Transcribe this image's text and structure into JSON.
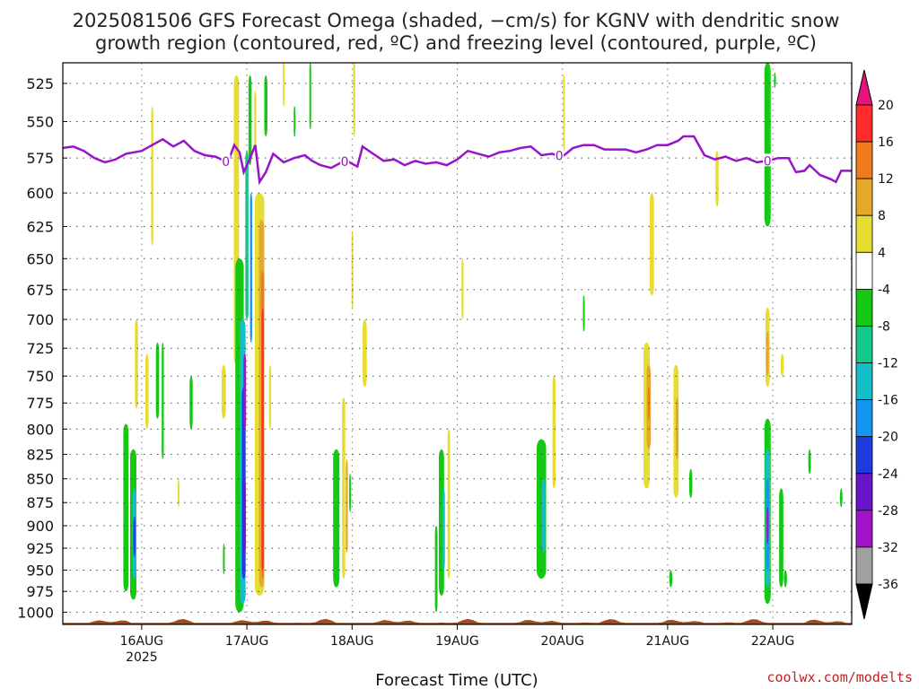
{
  "title": {
    "line1": "2025081506 GFS Forecast Omega (shaded, −cm/s) for KGNV with dendritic snow",
    "line2": "growth region (contoured, red, ºC) and freezing level (contoured, purple, ºC)"
  },
  "credit": "coolwx.com/modelts",
  "chart_data": {
    "type": "heatmap",
    "xlabel": "Forecast Time (UTC)",
    "ylabel": "",
    "x_tick_labels": [
      "16AUG",
      "17AUG",
      "18AUG",
      "19AUG",
      "20AUG",
      "21AUG",
      "22AUG"
    ],
    "x_tick_sublabel": "2025",
    "x_range_days": [
      15.25,
      22.75
    ],
    "y_range_hPa": [
      1015,
      512
    ],
    "y_ticks": [
      525,
      550,
      575,
      600,
      625,
      650,
      675,
      700,
      725,
      750,
      775,
      800,
      825,
      850,
      875,
      900,
      925,
      950,
      975,
      1000
    ],
    "grid": true,
    "colorbar": {
      "unit": "-cm/s",
      "labels": [
        "20",
        "16",
        "12",
        "8",
        "4",
        "-4",
        "-8",
        "-12",
        "-16",
        "-20",
        "-24",
        "-28",
        "-32",
        "-36"
      ],
      "bins": [
        {
          "lo": 16,
          "hi": 20,
          "color": "#ff2a2a"
        },
        {
          "lo": 12,
          "hi": 16,
          "color": "#f07a1e"
        },
        {
          "lo": 8,
          "hi": 12,
          "color": "#e6a82a"
        },
        {
          "lo": 4,
          "hi": 8,
          "color": "#e6dc32"
        },
        {
          "lo": -4,
          "hi": 4,
          "color": "#ffffff"
        },
        {
          "lo": -8,
          "hi": -4,
          "color": "#14c814"
        },
        {
          "lo": -12,
          "hi": -8,
          "color": "#14c88c"
        },
        {
          "lo": -16,
          "hi": -12,
          "color": "#14bec8"
        },
        {
          "lo": -20,
          "hi": -16,
          "color": "#1496f0"
        },
        {
          "lo": -24,
          "hi": -20,
          "color": "#1e3cdc"
        },
        {
          "lo": -28,
          "hi": -24,
          "color": "#6a14c8"
        },
        {
          "lo": -32,
          "hi": -28,
          "color": "#a014c8"
        },
        {
          "lo": -36,
          "hi": -32,
          "color": "#a0a0a0"
        }
      ],
      "top_arrow_color": "#e6147a",
      "bottom_arrow_color": "#000000"
    },
    "freezing_level": {
      "color": "#9914c8",
      "label": "0",
      "label_days": [
        16.8,
        17.93,
        19.97,
        21.95
      ],
      "points": [
        [
          15.25,
          568
        ],
        [
          15.35,
          567
        ],
        [
          15.45,
          570
        ],
        [
          15.55,
          575
        ],
        [
          15.65,
          578
        ],
        [
          15.75,
          576
        ],
        [
          15.85,
          572
        ],
        [
          16.0,
          570
        ],
        [
          16.1,
          566
        ],
        [
          16.2,
          562
        ],
        [
          16.3,
          567
        ],
        [
          16.4,
          563
        ],
        [
          16.5,
          570
        ],
        [
          16.6,
          573
        ],
        [
          16.7,
          574
        ],
        [
          16.82,
          578
        ],
        [
          16.88,
          566
        ],
        [
          16.93,
          571
        ],
        [
          16.97,
          585
        ],
        [
          17.02,
          577
        ],
        [
          17.08,
          566
        ],
        [
          17.12,
          592
        ],
        [
          17.18,
          585
        ],
        [
          17.25,
          572
        ],
        [
          17.35,
          578
        ],
        [
          17.45,
          575
        ],
        [
          17.55,
          573
        ],
        [
          17.62,
          577
        ],
        [
          17.7,
          580
        ],
        [
          17.8,
          582
        ],
        [
          17.9,
          578
        ],
        [
          17.95,
          577
        ],
        [
          18.05,
          581
        ],
        [
          18.1,
          567
        ],
        [
          18.2,
          572
        ],
        [
          18.3,
          577
        ],
        [
          18.4,
          576
        ],
        [
          18.5,
          580
        ],
        [
          18.6,
          577
        ],
        [
          18.7,
          579
        ],
        [
          18.8,
          578
        ],
        [
          18.9,
          580
        ],
        [
          19.0,
          576
        ],
        [
          19.1,
          570
        ],
        [
          19.2,
          572
        ],
        [
          19.3,
          574
        ],
        [
          19.4,
          571
        ],
        [
          19.5,
          570
        ],
        [
          19.6,
          568
        ],
        [
          19.7,
          567
        ],
        [
          19.8,
          573
        ],
        [
          19.9,
          572
        ],
        [
          20.0,
          574
        ],
        [
          20.1,
          568
        ],
        [
          20.2,
          566
        ],
        [
          20.3,
          566
        ],
        [
          20.4,
          569
        ],
        [
          20.5,
          569
        ],
        [
          20.6,
          569
        ],
        [
          20.7,
          571
        ],
        [
          20.8,
          569
        ],
        [
          20.9,
          566
        ],
        [
          21.0,
          566
        ],
        [
          21.1,
          563
        ],
        [
          21.15,
          560
        ],
        [
          21.25,
          560
        ],
        [
          21.35,
          573
        ],
        [
          21.45,
          576
        ],
        [
          21.55,
          574
        ],
        [
          21.65,
          577
        ],
        [
          21.75,
          575
        ],
        [
          21.85,
          578
        ],
        [
          21.95,
          577
        ],
        [
          22.05,
          575
        ],
        [
          22.15,
          575
        ],
        [
          22.22,
          585
        ],
        [
          22.3,
          584
        ],
        [
          22.35,
          580
        ],
        [
          22.45,
          587
        ],
        [
          22.55,
          590
        ],
        [
          22.6,
          592
        ],
        [
          22.65,
          584
        ],
        [
          22.75,
          584
        ]
      ]
    },
    "terrain": {
      "color": "#9b4e1e",
      "surface_hPa": 1013
    },
    "shaded_regions": [
      {
        "day": 15.85,
        "p_top": 795,
        "p_bot": 975,
        "w": 0.05,
        "v": -6
      },
      {
        "day": 15.92,
        "p_top": 820,
        "p_bot": 985,
        "w": 0.06,
        "v": -8
      },
      {
        "day": 15.93,
        "p_top": 860,
        "p_bot": 960,
        "w": 0.035,
        "v": -16
      },
      {
        "day": 15.93,
        "p_top": 890,
        "p_bot": 935,
        "w": 0.02,
        "v": -22
      },
      {
        "day": 15.95,
        "p_top": 700,
        "p_bot": 780,
        "w": 0.03,
        "v": 5
      },
      {
        "day": 16.05,
        "p_top": 730,
        "p_bot": 800,
        "w": 0.03,
        "v": 5
      },
      {
        "day": 16.1,
        "p_top": 540,
        "p_bot": 640,
        "w": 0.02,
        "v": 5
      },
      {
        "day": 16.15,
        "p_top": 720,
        "p_bot": 790,
        "w": 0.03,
        "v": -6
      },
      {
        "day": 16.2,
        "p_top": 720,
        "p_bot": 830,
        "w": 0.02,
        "v": -6
      },
      {
        "day": 16.35,
        "p_top": 850,
        "p_bot": 880,
        "w": 0.015,
        "v": 5
      },
      {
        "day": 16.47,
        "p_top": 750,
        "p_bot": 800,
        "w": 0.03,
        "v": -6
      },
      {
        "day": 16.78,
        "p_top": 740,
        "p_bot": 790,
        "w": 0.04,
        "v": 5
      },
      {
        "day": 16.78,
        "p_top": 920,
        "p_bot": 955,
        "w": 0.015,
        "v": -6
      },
      {
        "day": 16.9,
        "p_top": 520,
        "p_bot": 740,
        "w": 0.05,
        "v": 5
      },
      {
        "day": 16.93,
        "p_top": 650,
        "p_bot": 1000,
        "w": 0.08,
        "v": -8
      },
      {
        "day": 16.96,
        "p_top": 700,
        "p_bot": 990,
        "w": 0.055,
        "v": -14
      },
      {
        "day": 16.97,
        "p_top": 760,
        "p_bot": 960,
        "w": 0.035,
        "v": -22
      },
      {
        "day": 16.98,
        "p_top": 730,
        "p_bot": 800,
        "w": 0.025,
        "v": -30
      },
      {
        "day": 16.98,
        "p_top": 850,
        "p_bot": 930,
        "w": 0.02,
        "v": -26
      },
      {
        "day": 17.0,
        "p_top": 570,
        "p_bot": 700,
        "w": 0.03,
        "v": -10
      },
      {
        "day": 17.04,
        "p_top": 600,
        "p_bot": 720,
        "w": 0.02,
        "v": -18
      },
      {
        "day": 17.03,
        "p_top": 520,
        "p_bot": 580,
        "w": 0.03,
        "v": -6
      },
      {
        "day": 17.08,
        "p_top": 530,
        "p_bot": 570,
        "w": 0.02,
        "v": 5
      },
      {
        "day": 17.12,
        "p_top": 600,
        "p_bot": 980,
        "w": 0.09,
        "v": 6
      },
      {
        "day": 17.14,
        "p_top": 620,
        "p_bot": 970,
        "w": 0.05,
        "v": 10
      },
      {
        "day": 17.15,
        "p_top": 660,
        "p_bot": 960,
        "w": 0.03,
        "v": 14
      },
      {
        "day": 17.15,
        "p_top": 690,
        "p_bot": 950,
        "w": 0.018,
        "v": 18
      },
      {
        "day": 17.18,
        "p_top": 520,
        "p_bot": 560,
        "w": 0.03,
        "v": -6
      },
      {
        "day": 17.22,
        "p_top": 740,
        "p_bot": 800,
        "w": 0.02,
        "v": 5
      },
      {
        "day": 17.35,
        "p_top": 510,
        "p_bot": 540,
        "w": 0.015,
        "v": 5
      },
      {
        "day": 17.45,
        "p_top": 540,
        "p_bot": 560,
        "w": 0.01,
        "v": -6
      },
      {
        "day": 17.6,
        "p_top": 512,
        "p_bot": 555,
        "w": 0.012,
        "v": -6
      },
      {
        "day": 17.85,
        "p_top": 820,
        "p_bot": 970,
        "w": 0.06,
        "v": -7
      },
      {
        "day": 17.92,
        "p_top": 770,
        "p_bot": 960,
        "w": 0.03,
        "v": 6
      },
      {
        "day": 17.95,
        "p_top": 830,
        "p_bot": 930,
        "w": 0.02,
        "v": 10
      },
      {
        "day": 17.98,
        "p_top": 845,
        "p_bot": 885,
        "w": 0.015,
        "v": -6
      },
      {
        "day": 18.0,
        "p_top": 630,
        "p_bot": 690,
        "w": 0.01,
        "v": 5
      },
      {
        "day": 18.02,
        "p_top": 510,
        "p_bot": 560,
        "w": 0.02,
        "v": 5
      },
      {
        "day": 18.12,
        "p_top": 700,
        "p_bot": 760,
        "w": 0.04,
        "v": 5
      },
      {
        "day": 18.8,
        "p_top": 900,
        "p_bot": 1000,
        "w": 0.025,
        "v": -6
      },
      {
        "day": 18.85,
        "p_top": 820,
        "p_bot": 980,
        "w": 0.05,
        "v": -7
      },
      {
        "day": 18.87,
        "p_top": 860,
        "p_bot": 950,
        "w": 0.025,
        "v": -14
      },
      {
        "day": 18.92,
        "p_top": 800,
        "p_bot": 960,
        "w": 0.025,
        "v": 5
      },
      {
        "day": 19.05,
        "p_top": 650,
        "p_bot": 700,
        "w": 0.02,
        "v": 5
      },
      {
        "day": 19.8,
        "p_top": 810,
        "p_bot": 960,
        "w": 0.09,
        "v": -7
      },
      {
        "day": 19.82,
        "p_top": 850,
        "p_bot": 930,
        "w": 0.03,
        "v": -13
      },
      {
        "day": 19.92,
        "p_top": 750,
        "p_bot": 860,
        "w": 0.03,
        "v": 5
      },
      {
        "day": 20.01,
        "p_top": 520,
        "p_bot": 570,
        "w": 0.008,
        "v": 5
      },
      {
        "day": 20.2,
        "p_top": 680,
        "p_bot": 710,
        "w": 0.01,
        "v": -6
      },
      {
        "day": 20.85,
        "p_top": 600,
        "p_bot": 680,
        "w": 0.04,
        "v": 5
      },
      {
        "day": 20.8,
        "p_top": 720,
        "p_bot": 860,
        "w": 0.06,
        "v": 5
      },
      {
        "day": 20.82,
        "p_top": 740,
        "p_bot": 820,
        "w": 0.04,
        "v": 10
      },
      {
        "day": 20.82,
        "p_top": 760,
        "p_bot": 790,
        "w": 0.02,
        "v": 14
      },
      {
        "day": 21.08,
        "p_top": 740,
        "p_bot": 870,
        "w": 0.05,
        "v": 5
      },
      {
        "day": 21.09,
        "p_top": 770,
        "p_bot": 830,
        "w": 0.025,
        "v": 10
      },
      {
        "day": 21.22,
        "p_top": 840,
        "p_bot": 870,
        "w": 0.03,
        "v": -6
      },
      {
        "day": 21.47,
        "p_top": 570,
        "p_bot": 610,
        "w": 0.03,
        "v": 5
      },
      {
        "day": 21.03,
        "p_top": 950,
        "p_bot": 970,
        "w": 0.03,
        "v": -6
      },
      {
        "day": 21.95,
        "p_top": 512,
        "p_bot": 625,
        "w": 0.06,
        "v": -6
      },
      {
        "day": 21.95,
        "p_top": 690,
        "p_bot": 760,
        "w": 0.04,
        "v": 5
      },
      {
        "day": 21.95,
        "p_top": 710,
        "p_bot": 750,
        "w": 0.025,
        "v": 10
      },
      {
        "day": 22.09,
        "p_top": 730,
        "p_bot": 750,
        "w": 0.03,
        "v": 5
      },
      {
        "day": 21.95,
        "p_top": 790,
        "p_bot": 990,
        "w": 0.06,
        "v": -8
      },
      {
        "day": 21.95,
        "p_top": 820,
        "p_bot": 970,
        "w": 0.045,
        "v": -14
      },
      {
        "day": 21.95,
        "p_top": 850,
        "p_bot": 950,
        "w": 0.03,
        "v": -20
      },
      {
        "day": 21.95,
        "p_top": 880,
        "p_bot": 920,
        "w": 0.02,
        "v": -30
      },
      {
        "day": 22.08,
        "p_top": 860,
        "p_bot": 970,
        "w": 0.04,
        "v": -7
      },
      {
        "day": 22.12,
        "p_top": 950,
        "p_bot": 970,
        "w": 0.03,
        "v": -6
      },
      {
        "day": 22.35,
        "p_top": 820,
        "p_bot": 845,
        "w": 0.025,
        "v": -6
      },
      {
        "day": 22.65,
        "p_top": 860,
        "p_bot": 880,
        "w": 0.025,
        "v": -6
      },
      {
        "day": 22.02,
        "p_top": 518,
        "p_bot": 528,
        "w": 0.02,
        "v": -6
      }
    ]
  }
}
